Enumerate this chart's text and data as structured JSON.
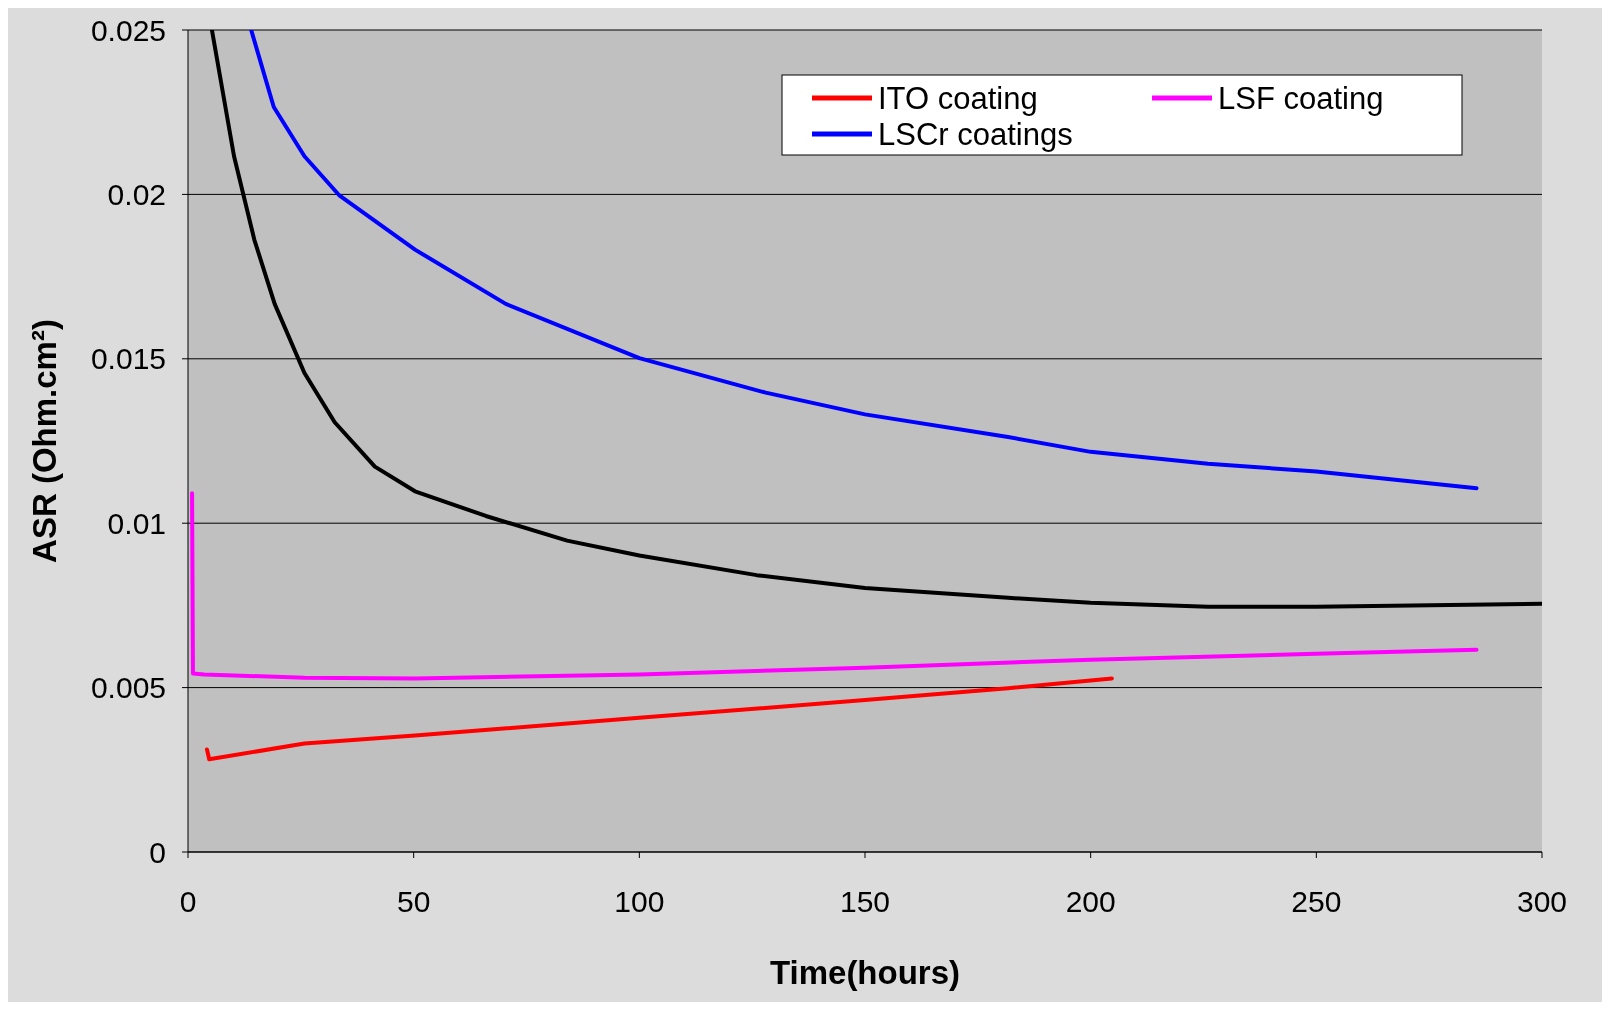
{
  "chart_data": {
    "type": "line",
    "xlabel": "Time(hours)",
    "ylabel": "ASR (Ohm.cm²)",
    "xlim": [
      0,
      300
    ],
    "xticks": [
      0,
      50,
      100,
      150,
      200,
      250,
      300
    ],
    "ylim": [
      0,
      0.025
    ],
    "yticks": [
      0,
      0.005,
      0.01,
      0.015,
      0.02,
      0.025
    ],
    "grid": "y",
    "legend": "top right",
    "marker": "none",
    "line_style": "solid",
    "series": [
      {
        "name": "ITO coating",
        "color": "#ff0000",
        "x": [
          4.2,
          4.7,
          25.8,
          50.3,
          100,
          150,
          181.7,
          204.7
        ],
        "values": [
          0.00312,
          0.00282,
          0.0033,
          0.00354,
          0.00408,
          0.00462,
          0.00498,
          0.00528
        ]
      },
      {
        "name": "LSF coating",
        "color": "#ff00ff",
        "x": [
          0.9,
          1.1,
          3.6,
          25.8,
          50.3,
          100,
          150,
          200,
          250,
          285.5
        ],
        "values": [
          0.01091,
          0.00543,
          0.0054,
          0.0053,
          0.00528,
          0.0054,
          0.0056,
          0.00585,
          0.00603,
          0.00615
        ]
      },
      {
        "name": "LSCr coatings",
        "color": "#0000ff",
        "x": [
          14,
          19,
          25.8,
          33.6,
          50.3,
          70.4,
          100,
          128,
          150,
          181.7,
          200,
          226,
          250,
          285.5
        ],
        "values": [
          0.025,
          0.02266,
          0.02116,
          0.01996,
          0.01832,
          0.01667,
          0.01502,
          0.01397,
          0.01331,
          0.01262,
          0.01217,
          0.01181,
          0.01157,
          0.01106
        ]
      },
      {
        "color": "#000000",
        "x": [
          5.3,
          10.2,
          14.7,
          19.2,
          25.8,
          32.5,
          41.4,
          50.3,
          66,
          84,
          100,
          126,
          150,
          181.7,
          200,
          226,
          250,
          300
        ],
        "values": [
          0.025,
          0.02116,
          0.01862,
          0.01667,
          0.01457,
          0.01307,
          0.01172,
          0.01097,
          0.01022,
          0.00947,
          0.00902,
          0.00842,
          0.00803,
          0.00773,
          0.00758,
          0.00746,
          0.00746,
          0.00755
        ]
      }
    ]
  }
}
